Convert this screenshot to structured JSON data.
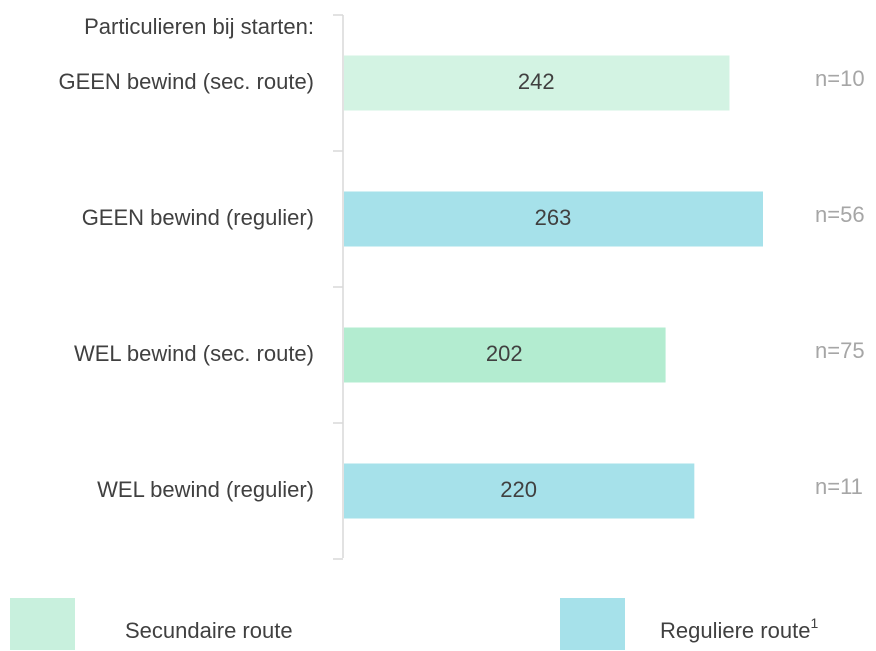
{
  "chart_data": {
    "type": "bar",
    "orientation": "horizontal",
    "header": "Particulieren bij starten:",
    "categories": [
      "GEEN bewind (sec. route)",
      "GEEN bewind (regulier)",
      "WEL bewind (sec. route)",
      "WEL bewind (regulier)"
    ],
    "values": [
      242,
      263,
      202,
      220
    ],
    "colors": [
      "#d3f3e3",
      "#a6e1ea",
      "#b3ecd0",
      "#a6e1ea"
    ],
    "annotations": [
      "n=10",
      "n=56",
      "n=75",
      "n=11"
    ],
    "legend": [
      {
        "name": "Secundaire route",
        "color": "#c8f0dd"
      },
      {
        "name": "Reguliere route",
        "superscript": "1",
        "color": "#a6e1ea"
      }
    ]
  }
}
